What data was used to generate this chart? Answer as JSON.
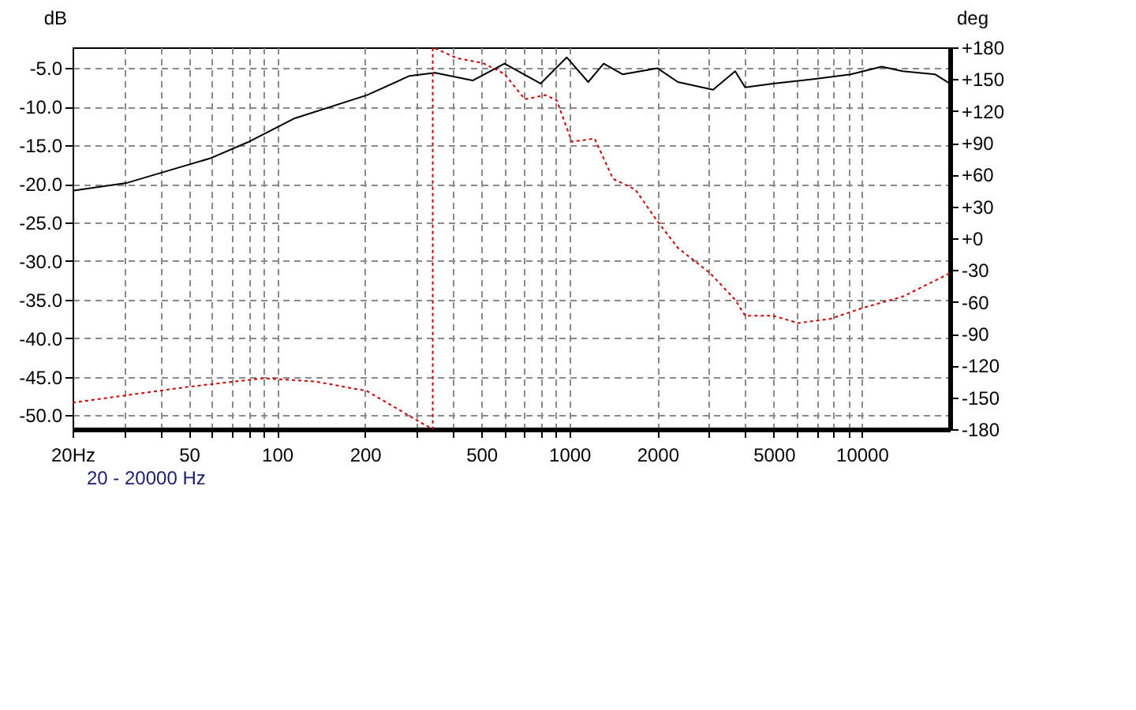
{
  "chart_data": {
    "type": "line",
    "ylabel": "dB",
    "y2label": "deg",
    "log": "x",
    "grid": true,
    "xlim": [
      20,
      20000
    ],
    "xticks": [
      {
        "value": 20,
        "label": "20Hz"
      },
      {
        "value": 30,
        "label": null
      },
      {
        "value": 40,
        "label": null
      },
      50,
      {
        "value": 60,
        "label": null
      },
      {
        "value": 70,
        "label": null
      },
      {
        "value": 80,
        "label": null
      },
      {
        "value": 90,
        "label": null
      },
      100,
      200,
      {
        "value": 300,
        "label": null
      },
      {
        "value": 400,
        "label": null
      },
      500,
      {
        "value": 600,
        "label": null
      },
      {
        "value": 700,
        "label": null
      },
      {
        "value": 800,
        "label": null
      },
      {
        "value": 900,
        "label": null
      },
      1000,
      2000,
      {
        "value": 3000,
        "label": null
      },
      {
        "value": 4000,
        "label": null
      },
      5000,
      {
        "value": 6000,
        "label": null
      },
      {
        "value": 7000,
        "label": null
      },
      {
        "value": 8000,
        "label": null
      },
      {
        "value": 9000,
        "label": null
      },
      10000
    ],
    "ylim": [
      -51.8,
      -2.3
    ],
    "yticks": [
      {
        "value": -5,
        "label": "-5.0"
      },
      {
        "value": -10,
        "label": "-10.0"
      },
      {
        "value": -15,
        "label": "-15.0"
      },
      {
        "value": -20,
        "label": "-20.0"
      },
      {
        "value": -25,
        "label": "-25.0"
      },
      {
        "value": -30,
        "label": "-30.0"
      },
      {
        "value": -35,
        "label": "-35.0"
      },
      {
        "value": -40,
        "label": "-40.0"
      },
      {
        "value": -45,
        "label": "-45.0"
      },
      {
        "value": -50,
        "label": "-50.0"
      }
    ],
    "y2lim": [
      -180,
      180
    ],
    "y2ticks": [
      {
        "value": 180,
        "label": "+180"
      },
      {
        "value": 150,
        "label": "+150"
      },
      {
        "value": 120,
        "label": "+120"
      },
      {
        "value": 90,
        "label": "+90"
      },
      {
        "value": 60,
        "label": "+60"
      },
      {
        "value": 30,
        "label": "+30"
      },
      {
        "value": 0,
        "label": "+0"
      },
      -30,
      -60,
      -90,
      -120,
      -150,
      -180
    ],
    "annotations": [
      "20 - 20000 Hz"
    ],
    "series": [
      {
        "color": "#000000",
        "line_style": "solid",
        "x": [
          20,
          30.5,
          39,
          59,
          79.5,
          115,
          203,
          284,
          347,
          467,
          600,
          797,
          979,
          1160,
          1310,
          1520,
          2000,
          2350,
          3100,
          3690,
          3990,
          4970,
          6940,
          9160,
          11700,
          13800,
          17800,
          20000
        ],
        "values": [
          -20.9,
          -19.9,
          -18.7,
          -16.7,
          -14.6,
          -11.5,
          -8.5,
          -6.0,
          -5.6,
          -6.6,
          -4.4,
          -7.0,
          -3.6,
          -6.8,
          -4.4,
          -5.8,
          -5.0,
          -6.8,
          -7.8,
          -5.4,
          -7.5,
          -7.0,
          -6.4,
          -5.8,
          -4.8,
          -5.4,
          -5.8,
          -7.0
        ]
      },
      {
        "color": "#cc0000",
        "line_style": "dotted",
        "axis": "y2",
        "x": [
          20,
          50,
          90,
          135,
          203,
          307,
          341,
          341,
          411,
          507,
          600,
          704,
          830,
          905,
          1020,
          1220,
          1410,
          1680,
          2000,
          2350,
          3030,
          3690,
          3990,
          4970,
          6060,
          7800,
          10000,
          13800,
          17800,
          20000
        ],
        "values": [
          -155,
          -140,
          -132,
          -135,
          -144,
          -173,
          -180,
          180,
          170,
          165,
          155,
          131,
          135,
          130,
          91,
          94,
          56,
          46,
          16,
          -9,
          -33,
          -58,
          -73,
          -73,
          -80,
          -76,
          -66,
          -55,
          -40,
          -33
        ]
      }
    ]
  }
}
